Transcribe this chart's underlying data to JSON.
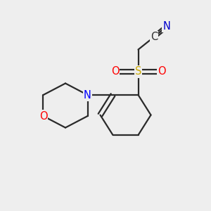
{
  "bg_color": "#eeeeee",
  "bond_color": "#2a2a2a",
  "bond_width": 1.6,
  "atom_colors": {
    "O": "#ff0000",
    "N": "#0000ff",
    "S": "#ccaa00",
    "C": "#2a2a2a",
    "N_nitrile": "#0000cd"
  },
  "font_size": 10.5
}
